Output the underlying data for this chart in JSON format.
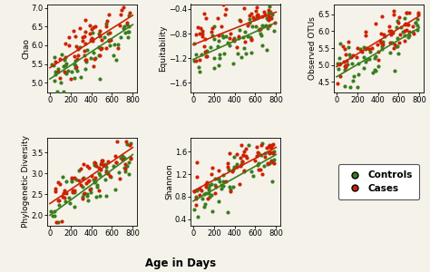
{
  "panels": [
    {
      "ylabel": "Chao",
      "ylim": [
        4.75,
        7.1
      ],
      "yticks": [
        5.0,
        5.5,
        6.0,
        6.5,
        7.0
      ],
      "controls_line": [
        0,
        5.1,
        800,
        6.55
      ],
      "cases_line": [
        0,
        5.4,
        800,
        6.8
      ],
      "row": 0,
      "col": 0,
      "y_spread_factor": 0.14
    },
    {
      "ylabel": "Equitability",
      "ylim": [
        -1.75,
        -0.32
      ],
      "yticks": [
        -1.6,
        -1.2,
        -0.8,
        -0.4
      ],
      "controls_line": [
        0,
        -1.22,
        800,
        -0.62
      ],
      "cases_line": [
        0,
        -0.98,
        800,
        -0.45
      ],
      "row": 0,
      "col": 1,
      "y_spread_factor": 0.13
    },
    {
      "ylabel": "Observed OTUs",
      "ylim": [
        4.2,
        6.8
      ],
      "yticks": [
        4.5,
        5.0,
        5.5,
        6.0,
        6.5
      ],
      "controls_line": [
        0,
        4.65,
        800,
        6.1
      ],
      "cases_line": [
        0,
        4.95,
        800,
        6.45
      ],
      "row": 0,
      "col": 2,
      "y_spread_factor": 0.13
    },
    {
      "ylabel": "Phylogenetic Diversity",
      "ylim": [
        1.75,
        3.85
      ],
      "yticks": [
        2.0,
        2.5,
        3.0,
        3.5
      ],
      "controls_line": [
        0,
        2.0,
        800,
        3.45
      ],
      "cases_line": [
        0,
        2.28,
        800,
        3.62
      ],
      "row": 1,
      "col": 0,
      "y_spread_factor": 0.13
    },
    {
      "ylabel": "Shannon",
      "ylim": [
        0.28,
        1.85
      ],
      "yticks": [
        0.4,
        0.8,
        1.2,
        1.6
      ],
      "controls_line": [
        0,
        0.72,
        800,
        1.55
      ],
      "cases_line": [
        0,
        0.9,
        800,
        1.68
      ],
      "row": 1,
      "col": 1,
      "y_spread_factor": 0.13
    }
  ],
  "xlim": [
    -25,
    840
  ],
  "xticks": [
    0,
    200,
    400,
    600,
    800
  ],
  "xlabel": "Age in Days",
  "controls_color": "#3a7d1e",
  "cases_color": "#cc2200",
  "controls_label": "Controls",
  "cases_label": "Cases",
  "marker_size": 9,
  "line_width": 1.2,
  "background_color": "#f5f2ea",
  "plot_bg": "#f5f2ea",
  "legend_fontsize": 7.5,
  "axis_label_fontsize": 6.5,
  "tick_fontsize": 6.0,
  "n_controls": 60,
  "n_cases": 60
}
